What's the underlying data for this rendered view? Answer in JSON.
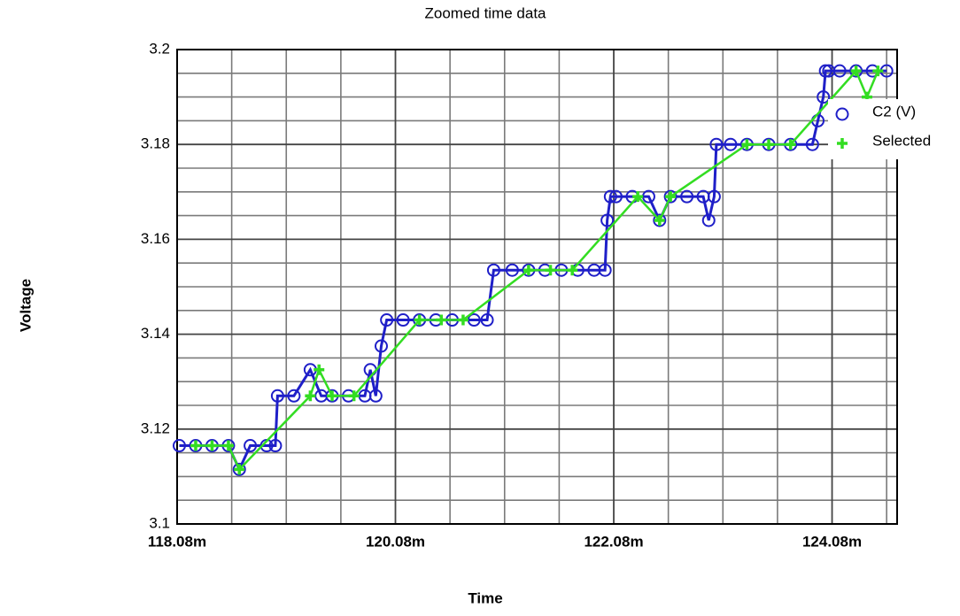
{
  "chart_data": {
    "type": "scatter-line",
    "title": "Zoomed time data",
    "x_label": "Time",
    "y_label": "Voltage",
    "xlim": [
      0.11808,
      0.124676
    ],
    "ylim": [
      3.1,
      3.2
    ],
    "xticks": [
      {
        "value": 0.11808,
        "label": "118.08m"
      },
      {
        "value": 0.12008,
        "label": "120.08m"
      },
      {
        "value": 0.12208,
        "label": "122.08m"
      },
      {
        "value": 0.12408,
        "label": "124.08m"
      }
    ],
    "yticks": [
      3.1,
      3.12,
      3.14,
      3.16,
      3.18,
      3.2
    ],
    "x_minor_ticks": [
      0.11858,
      0.11908,
      0.11958,
      0.12058,
      0.12108,
      0.12158,
      0.12258,
      0.12308,
      0.12358,
      0.12458
    ],
    "y_minor_ticks": [
      3.105,
      3.11,
      3.115,
      3.125,
      3.13,
      3.135,
      3.145,
      3.15,
      3.155,
      3.165,
      3.17,
      3.175,
      3.185,
      3.19,
      3.195
    ],
    "grid": true,
    "legend": "top-right",
    "series": [
      {
        "name": "C2 (V)",
        "color": "#1f1fc8",
        "marker": "circle",
        "x": [
          0.1181,
          0.11825,
          0.1184,
          0.11855,
          0.11865,
          0.11875,
          0.1189,
          0.11898,
          0.119,
          0.11915,
          0.1193,
          0.1194,
          0.1195,
          0.11965,
          0.1198,
          0.11985,
          0.1199,
          0.11995,
          0.12,
          0.12015,
          0.1203,
          0.12045,
          0.1206,
          0.1208,
          0.12092,
          0.12098,
          0.12115,
          0.1213,
          0.12145,
          0.1216,
          0.12175,
          0.1219,
          0.122,
          0.12202,
          0.12205,
          0.1221,
          0.12225,
          0.1224,
          0.1225,
          0.1226,
          0.12275,
          0.1229,
          0.12295,
          0.123,
          0.12302,
          0.12315,
          0.1233,
          0.1235,
          0.1237,
          0.1239,
          0.12395,
          0.124,
          0.12402,
          0.12405,
          0.12415,
          0.1243,
          0.12445,
          0.12458
        ],
        "values": [
          3.1165,
          3.1165,
          3.1165,
          3.1165,
          3.1115,
          3.1165,
          3.1165,
          3.1165,
          3.127,
          3.127,
          3.1325,
          3.127,
          3.127,
          3.127,
          3.127,
          3.1325,
          3.127,
          3.1375,
          3.143,
          3.143,
          3.143,
          3.143,
          3.143,
          3.143,
          3.143,
          3.1535,
          3.1535,
          3.1535,
          3.1535,
          3.1535,
          3.1535,
          3.1535,
          3.1535,
          3.164,
          3.169,
          3.169,
          3.169,
          3.169,
          3.164,
          3.169,
          3.169,
          3.169,
          3.164,
          3.169,
          3.18,
          3.18,
          3.18,
          3.18,
          3.18,
          3.18,
          3.185,
          3.19,
          3.1955,
          3.1955,
          3.1955,
          3.1955,
          3.1955,
          3.1955
        ]
      },
      {
        "name": "Selected",
        "color": "#33dd22",
        "marker": "plus",
        "x": [
          0.11825,
          0.1184,
          0.11855,
          0.11865,
          0.1193,
          0.11938,
          0.1195,
          0.1197,
          0.1203,
          0.1205,
          0.1207,
          0.1213,
          0.1215,
          0.1217,
          0.1223,
          0.1225,
          0.1226,
          0.1233,
          0.1235,
          0.1237,
          0.1243,
          0.1244,
          0.1245
        ],
        "values": [
          3.1165,
          3.1165,
          3.1165,
          3.1115,
          3.127,
          3.1325,
          3.127,
          3.127,
          3.143,
          3.143,
          3.143,
          3.1535,
          3.1535,
          3.1535,
          3.169,
          3.164,
          3.169,
          3.18,
          3.18,
          3.18,
          3.1955,
          3.19,
          3.1955
        ]
      }
    ]
  }
}
